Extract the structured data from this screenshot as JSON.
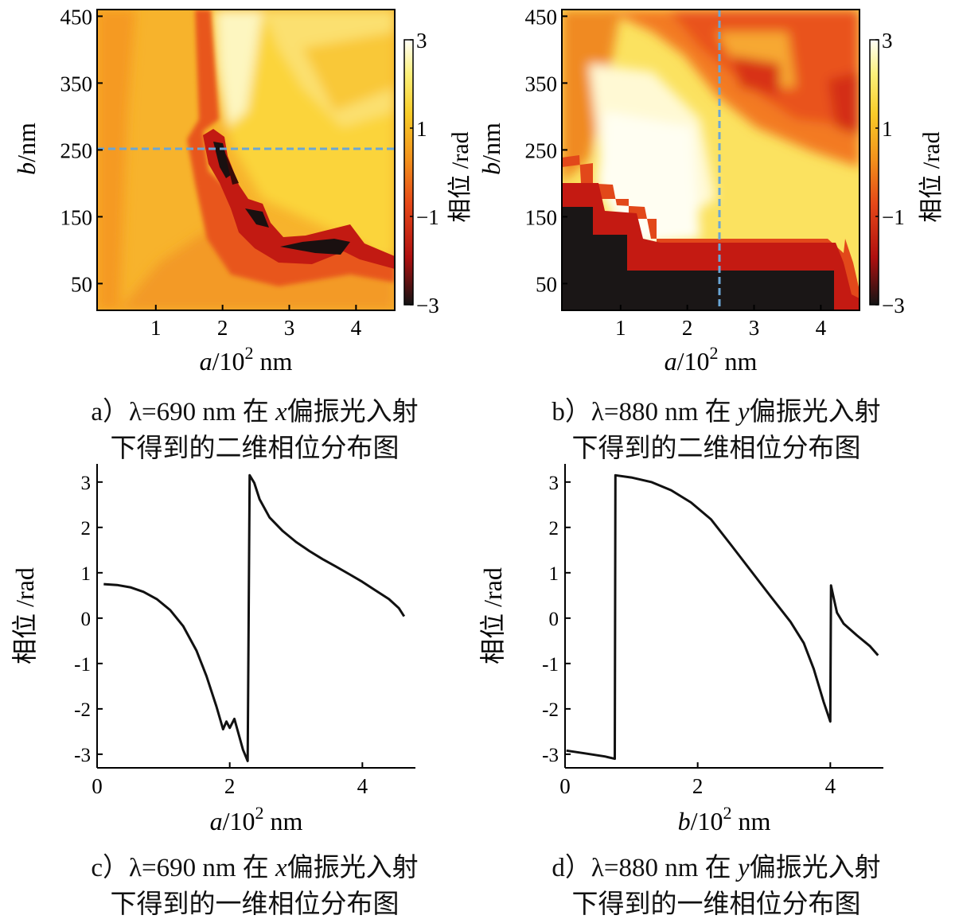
{
  "chart_data": [
    {
      "id": "a",
      "type": "heatmap",
      "xlabel_var": "a",
      "xlabel_unit": "/10",
      "xlabel_exp": "2",
      "xlabel_tail": " nm",
      "ylabel_var": "b",
      "ylabel_unit": "/nm",
      "x_range": [
        0.12,
        4.58
      ],
      "y_range": [
        10,
        460
      ],
      "x_ticks": [
        1,
        2,
        3,
        4
      ],
      "x_tick_labels": [
        "1",
        "2",
        "3",
        "4"
      ],
      "y_ticks": [
        50,
        150,
        250,
        350,
        450
      ],
      "y_tick_labels": [
        "50",
        "150",
        "250",
        "350",
        "450"
      ],
      "colorbar": {
        "range": [
          -3,
          3
        ],
        "ticks": [
          3,
          1,
          -1,
          -3
        ],
        "tick_labels": [
          "3",
          "1",
          "−1",
          "−3"
        ],
        "label": "相位 /rad"
      },
      "marker_line": {
        "orientation": "horizontal",
        "value": 250
      },
      "caption": {
        "prefix": "a）",
        "lambda": "λ=690 nm 在 ",
        "pol": "x",
        "suffix": "偏振光入射",
        "line2": "下得到的二维相位分布图"
      }
    },
    {
      "id": "b",
      "type": "heatmap",
      "xlabel_var": "a",
      "xlabel_unit": "/10",
      "xlabel_exp": "2",
      "xlabel_tail": " nm",
      "ylabel_var": "b",
      "ylabel_unit": "/nm",
      "x_range": [
        0.12,
        4.58
      ],
      "y_range": [
        10,
        460
      ],
      "x_ticks": [
        1,
        2,
        3,
        4
      ],
      "x_tick_labels": [
        "1",
        "2",
        "3",
        "4"
      ],
      "y_ticks": [
        50,
        150,
        250,
        350,
        450
      ],
      "y_tick_labels": [
        "50",
        "150",
        "250",
        "350",
        "450"
      ],
      "colorbar": {
        "range": [
          -3,
          3
        ],
        "ticks": [
          3,
          1,
          -1,
          -3
        ],
        "tick_labels": [
          "3",
          "1",
          "−1",
          "−3"
        ],
        "label": "相位 /rad"
      },
      "marker_line": {
        "orientation": "vertical",
        "value": 2.45
      },
      "caption": {
        "prefix": "b）",
        "lambda": "λ=880 nm 在 ",
        "pol": "y",
        "suffix": "偏振光入射",
        "line2": "下得到的二维相位分布图"
      }
    },
    {
      "id": "c",
      "type": "line",
      "xlabel_var": "a",
      "xlabel_unit": "/10",
      "xlabel_exp": "2",
      "xlabel_tail": " nm",
      "ylabel": "相位 /rad",
      "xlim": [
        0,
        4.8
      ],
      "ylim": [
        -3.3,
        3.4
      ],
      "x_ticks": [
        0,
        2,
        4
      ],
      "x_tick_labels": [
        "0",
        "2",
        "4"
      ],
      "y_ticks": [
        3,
        2,
        1,
        0,
        -1,
        -2,
        -3
      ],
      "y_tick_labels": [
        "3",
        "2",
        "1",
        "0",
        "-1",
        "-2",
        "-3"
      ],
      "x": [
        0.1,
        0.3,
        0.5,
        0.7,
        0.9,
        1.1,
        1.3,
        1.5,
        1.65,
        1.8,
        1.9,
        1.95,
        2.0,
        2.07,
        2.2,
        2.27,
        2.3,
        2.37,
        2.45,
        2.6,
        2.8,
        3.0,
        3.2,
        3.4,
        3.6,
        3.8,
        4.0,
        4.2,
        4.4,
        4.55,
        4.63
      ],
      "y": [
        0.75,
        0.73,
        0.68,
        0.58,
        0.42,
        0.18,
        -0.18,
        -0.72,
        -1.28,
        -1.95,
        -2.45,
        -2.28,
        -2.42,
        -2.22,
        -2.9,
        -3.15,
        3.15,
        2.98,
        2.62,
        2.22,
        1.92,
        1.68,
        1.48,
        1.3,
        1.14,
        0.97,
        0.8,
        0.61,
        0.42,
        0.22,
        0.04
      ],
      "caption": {
        "prefix": "c）",
        "lambda": "λ=690 nm 在 ",
        "pol": "x",
        "suffix": "偏振光入射",
        "line2": "下得到的一维相位分布图"
      }
    },
    {
      "id": "d",
      "type": "line",
      "xlabel_var": "b",
      "xlabel_unit": "/10",
      "xlabel_exp": "2",
      "xlabel_tail": " nm",
      "ylabel": "相位 /rad",
      "xlim": [
        0,
        4.8
      ],
      "ylim": [
        -3.3,
        3.4
      ],
      "x_ticks": [
        0,
        2,
        4
      ],
      "x_tick_labels": [
        "0",
        "2",
        "4"
      ],
      "y_ticks": [
        3,
        2,
        1,
        0,
        -1,
        -2,
        -3
      ],
      "y_tick_labels": [
        "3",
        "2",
        "1",
        "0",
        "-1",
        "-2",
        "-3"
      ],
      "x": [
        0.02,
        0.3,
        0.6,
        0.75,
        0.76,
        1.0,
        1.3,
        1.6,
        1.9,
        2.2,
        2.5,
        2.8,
        3.1,
        3.4,
        3.6,
        3.75,
        3.9,
        4.0,
        4.01,
        4.05,
        4.1,
        4.2,
        4.4,
        4.6,
        4.72
      ],
      "y": [
        -2.92,
        -2.98,
        -3.05,
        -3.1,
        3.15,
        3.1,
        3.0,
        2.82,
        2.55,
        2.18,
        1.62,
        1.05,
        0.48,
        -0.08,
        -0.55,
        -1.12,
        -1.85,
        -2.28,
        0.72,
        0.45,
        0.12,
        -0.12,
        -0.38,
        -0.62,
        -0.82
      ],
      "caption": {
        "prefix": "d）",
        "lambda": "λ=880 nm 在 ",
        "pol": "y",
        "suffix": "偏振光入射",
        "line2": "下得到的一维相位分布图"
      }
    }
  ]
}
